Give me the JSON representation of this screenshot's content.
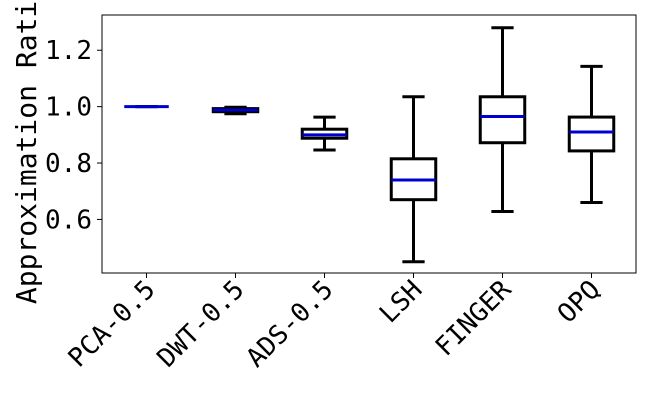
{
  "chart_data": {
    "type": "box",
    "title": "",
    "xlabel": "",
    "ylabel": "Approximation Ratio",
    "ylim": [
      0.41,
      1.325
    ],
    "yticks": [
      0.6,
      0.8,
      1.0,
      1.2
    ],
    "ytick_labels": [
      "0.6",
      "0.8",
      "1.0",
      "1.2"
    ],
    "categories": [
      "PCA-0.5",
      "DWT-0.5",
      "ADS-0.5",
      "LSH",
      "FINGER",
      "OPQ"
    ],
    "boxes": [
      {
        "whisker_low": 1.0,
        "q1": 1.0,
        "median": 1.0,
        "q3": 1.0,
        "whisker_high": 1.0
      },
      {
        "whisker_low": 0.975,
        "q1": 0.982,
        "median": 0.988,
        "q3": 0.993,
        "whisker_high": 0.998
      },
      {
        "whisker_low": 0.846,
        "q1": 0.888,
        "median": 0.9,
        "q3": 0.92,
        "whisker_high": 0.963
      },
      {
        "whisker_low": 0.45,
        "q1": 0.67,
        "median": 0.74,
        "q3": 0.815,
        "whisker_high": 1.035
      },
      {
        "whisker_low": 0.628,
        "q1": 0.872,
        "median": 0.965,
        "q3": 1.035,
        "whisker_high": 1.28
      },
      {
        "whisker_low": 0.66,
        "q1": 0.843,
        "median": 0.91,
        "q3": 0.963,
        "whisker_high": 1.143
      }
    ],
    "colors": {
      "box": "#000000",
      "median": "#0000cc",
      "background": "#ffffff"
    },
    "grid": false
  }
}
